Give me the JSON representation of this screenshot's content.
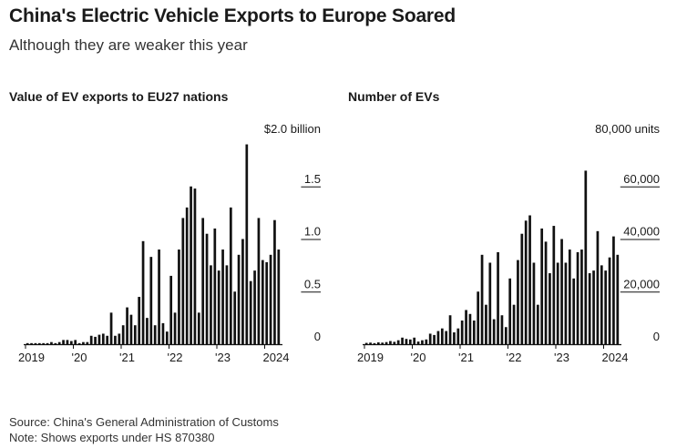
{
  "title": "China's Electric Vehicle Exports to Europe Soared",
  "subtitle": "Although they are weaker this year",
  "footer": {
    "source": "Source: China's General Administration of Customs",
    "note": "Note: Shows exports under HS 870380"
  },
  "bar_color": "#111111",
  "chart_data": [
    {
      "type": "bar",
      "title": "Value of EV exports to EU27 nations",
      "xlabel": "",
      "ylabel": "",
      "ylim": [
        0,
        2.0
      ],
      "yticks": [
        {
          "value": 0,
          "label": "0"
        },
        {
          "value": 0.5,
          "label": "0.5"
        },
        {
          "value": 1.0,
          "label": "1.0"
        },
        {
          "value": 1.5,
          "label": "1.5"
        },
        {
          "value": 2.0,
          "label": "$2.0 billion"
        }
      ],
      "xticks": [
        {
          "month_index": 0,
          "label": "2019"
        },
        {
          "month_index": 12,
          "label": "'20"
        },
        {
          "month_index": 24,
          "label": "'21"
        },
        {
          "month_index": 36,
          "label": "'22"
        },
        {
          "month_index": 48,
          "label": "'23"
        },
        {
          "month_index": 60,
          "label": "2024"
        }
      ],
      "values": [
        0.01,
        0.01,
        0.01,
        0.01,
        0.01,
        0.01,
        0.02,
        0.01,
        0.02,
        0.04,
        0.04,
        0.03,
        0.04,
        0.01,
        0.02,
        0.02,
        0.08,
        0.07,
        0.09,
        0.1,
        0.08,
        0.3,
        0.08,
        0.1,
        0.18,
        0.35,
        0.28,
        0.18,
        0.45,
        0.98,
        0.25,
        0.83,
        0.18,
        0.9,
        0.2,
        0.12,
        0.65,
        0.3,
        0.9,
        1.2,
        1.3,
        1.5,
        1.48,
        0.3,
        1.2,
        1.05,
        0.75,
        1.1,
        0.7,
        0.9,
        0.75,
        1.3,
        0.5,
        0.85,
        1.0,
        1.9,
        0.6,
        0.7,
        1.2,
        0.8,
        0.78,
        0.85,
        1.18,
        0.9
      ]
    },
    {
      "type": "bar",
      "title": "Number of EVs",
      "xlabel": "",
      "ylabel": "",
      "ylim": [
        0,
        80000
      ],
      "yticks": [
        {
          "value": 0,
          "label": "0"
        },
        {
          "value": 20000,
          "label": "20,000"
        },
        {
          "value": 40000,
          "label": "40,000"
        },
        {
          "value": 60000,
          "label": "60,000"
        },
        {
          "value": 80000,
          "label": "80,000 units"
        }
      ],
      "xticks": [
        {
          "month_index": 0,
          "label": "2019"
        },
        {
          "month_index": 12,
          "label": "'20"
        },
        {
          "month_index": 24,
          "label": "'21"
        },
        {
          "month_index": 36,
          "label": "'22"
        },
        {
          "month_index": 48,
          "label": "'23"
        },
        {
          "month_index": 60,
          "label": "2024"
        }
      ],
      "values": [
        500,
        600,
        400,
        700,
        600,
        800,
        1200,
        900,
        1500,
        2500,
        2000,
        1800,
        2500,
        1000,
        1500,
        1800,
        4000,
        3500,
        5000,
        6000,
        5000,
        11000,
        4500,
        6000,
        9000,
        13000,
        11500,
        9000,
        20000,
        34000,
        15000,
        31000,
        9500,
        35000,
        11000,
        6500,
        25000,
        15000,
        32000,
        42000,
        47000,
        49000,
        31000,
        15000,
        44000,
        39000,
        27000,
        45000,
        31000,
        40000,
        31000,
        36000,
        25000,
        35000,
        36000,
        66000,
        27000,
        28000,
        43000,
        30000,
        28000,
        33000,
        41000,
        34000
      ]
    }
  ]
}
